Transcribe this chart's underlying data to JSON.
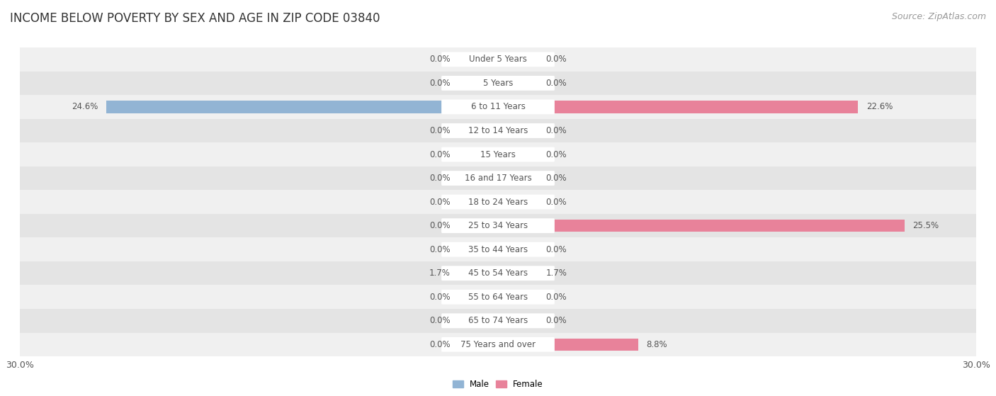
{
  "title": "INCOME BELOW POVERTY BY SEX AND AGE IN ZIP CODE 03840",
  "source": "Source: ZipAtlas.com",
  "categories": [
    "Under 5 Years",
    "5 Years",
    "6 to 11 Years",
    "12 to 14 Years",
    "15 Years",
    "16 and 17 Years",
    "18 to 24 Years",
    "25 to 34 Years",
    "35 to 44 Years",
    "45 to 54 Years",
    "55 to 64 Years",
    "65 to 74 Years",
    "75 Years and over"
  ],
  "male_values": [
    0.0,
    0.0,
    24.6,
    0.0,
    0.0,
    0.0,
    0.0,
    0.0,
    0.0,
    1.7,
    0.0,
    0.0,
    0.0
  ],
  "female_values": [
    0.0,
    0.0,
    22.6,
    0.0,
    0.0,
    0.0,
    0.0,
    25.5,
    0.0,
    1.7,
    0.0,
    0.0,
    8.8
  ],
  "male_color": "#92b4d4",
  "female_color": "#e8829a",
  "male_label": "Male",
  "female_label": "Female",
  "xlim": 30.0,
  "min_bar_width": 2.5,
  "bar_height": 0.52,
  "row_bg_colors": [
    "#f0f0f0",
    "#e4e4e4"
  ],
  "label_color_dark": "#555555",
  "label_color_white": "#ffffff",
  "title_fontsize": 12,
  "source_fontsize": 9,
  "label_fontsize": 8.5,
  "category_fontsize": 8.5,
  "axis_label_fontsize": 9,
  "figsize": [
    14.06,
    5.59
  ],
  "dpi": 100
}
